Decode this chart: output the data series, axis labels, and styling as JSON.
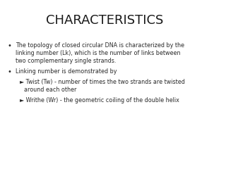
{
  "title": "CHARACTERISTICS",
  "background_color": "#ffffff",
  "title_color": "#1a1a1a",
  "title_fontsize": 13,
  "bullet1_line1": "The topology of closed circular DNA is characterized by the",
  "bullet1_line2": "linking number (Lk), which is the number of links between",
  "bullet1_line3": "two complementary single strands.",
  "bullet2": "Linking number is demonstrated by",
  "sub1_line1": "► Twist (Tw) - number of times the two strands are twisted",
  "sub1_line2": "   around each other",
  "sub2": "► Writhe (Wr) - the geometric coiling of the double helix",
  "text_fontsize": 5.8,
  "text_color": "#2a2a2a",
  "bullet_fontsize": 7
}
